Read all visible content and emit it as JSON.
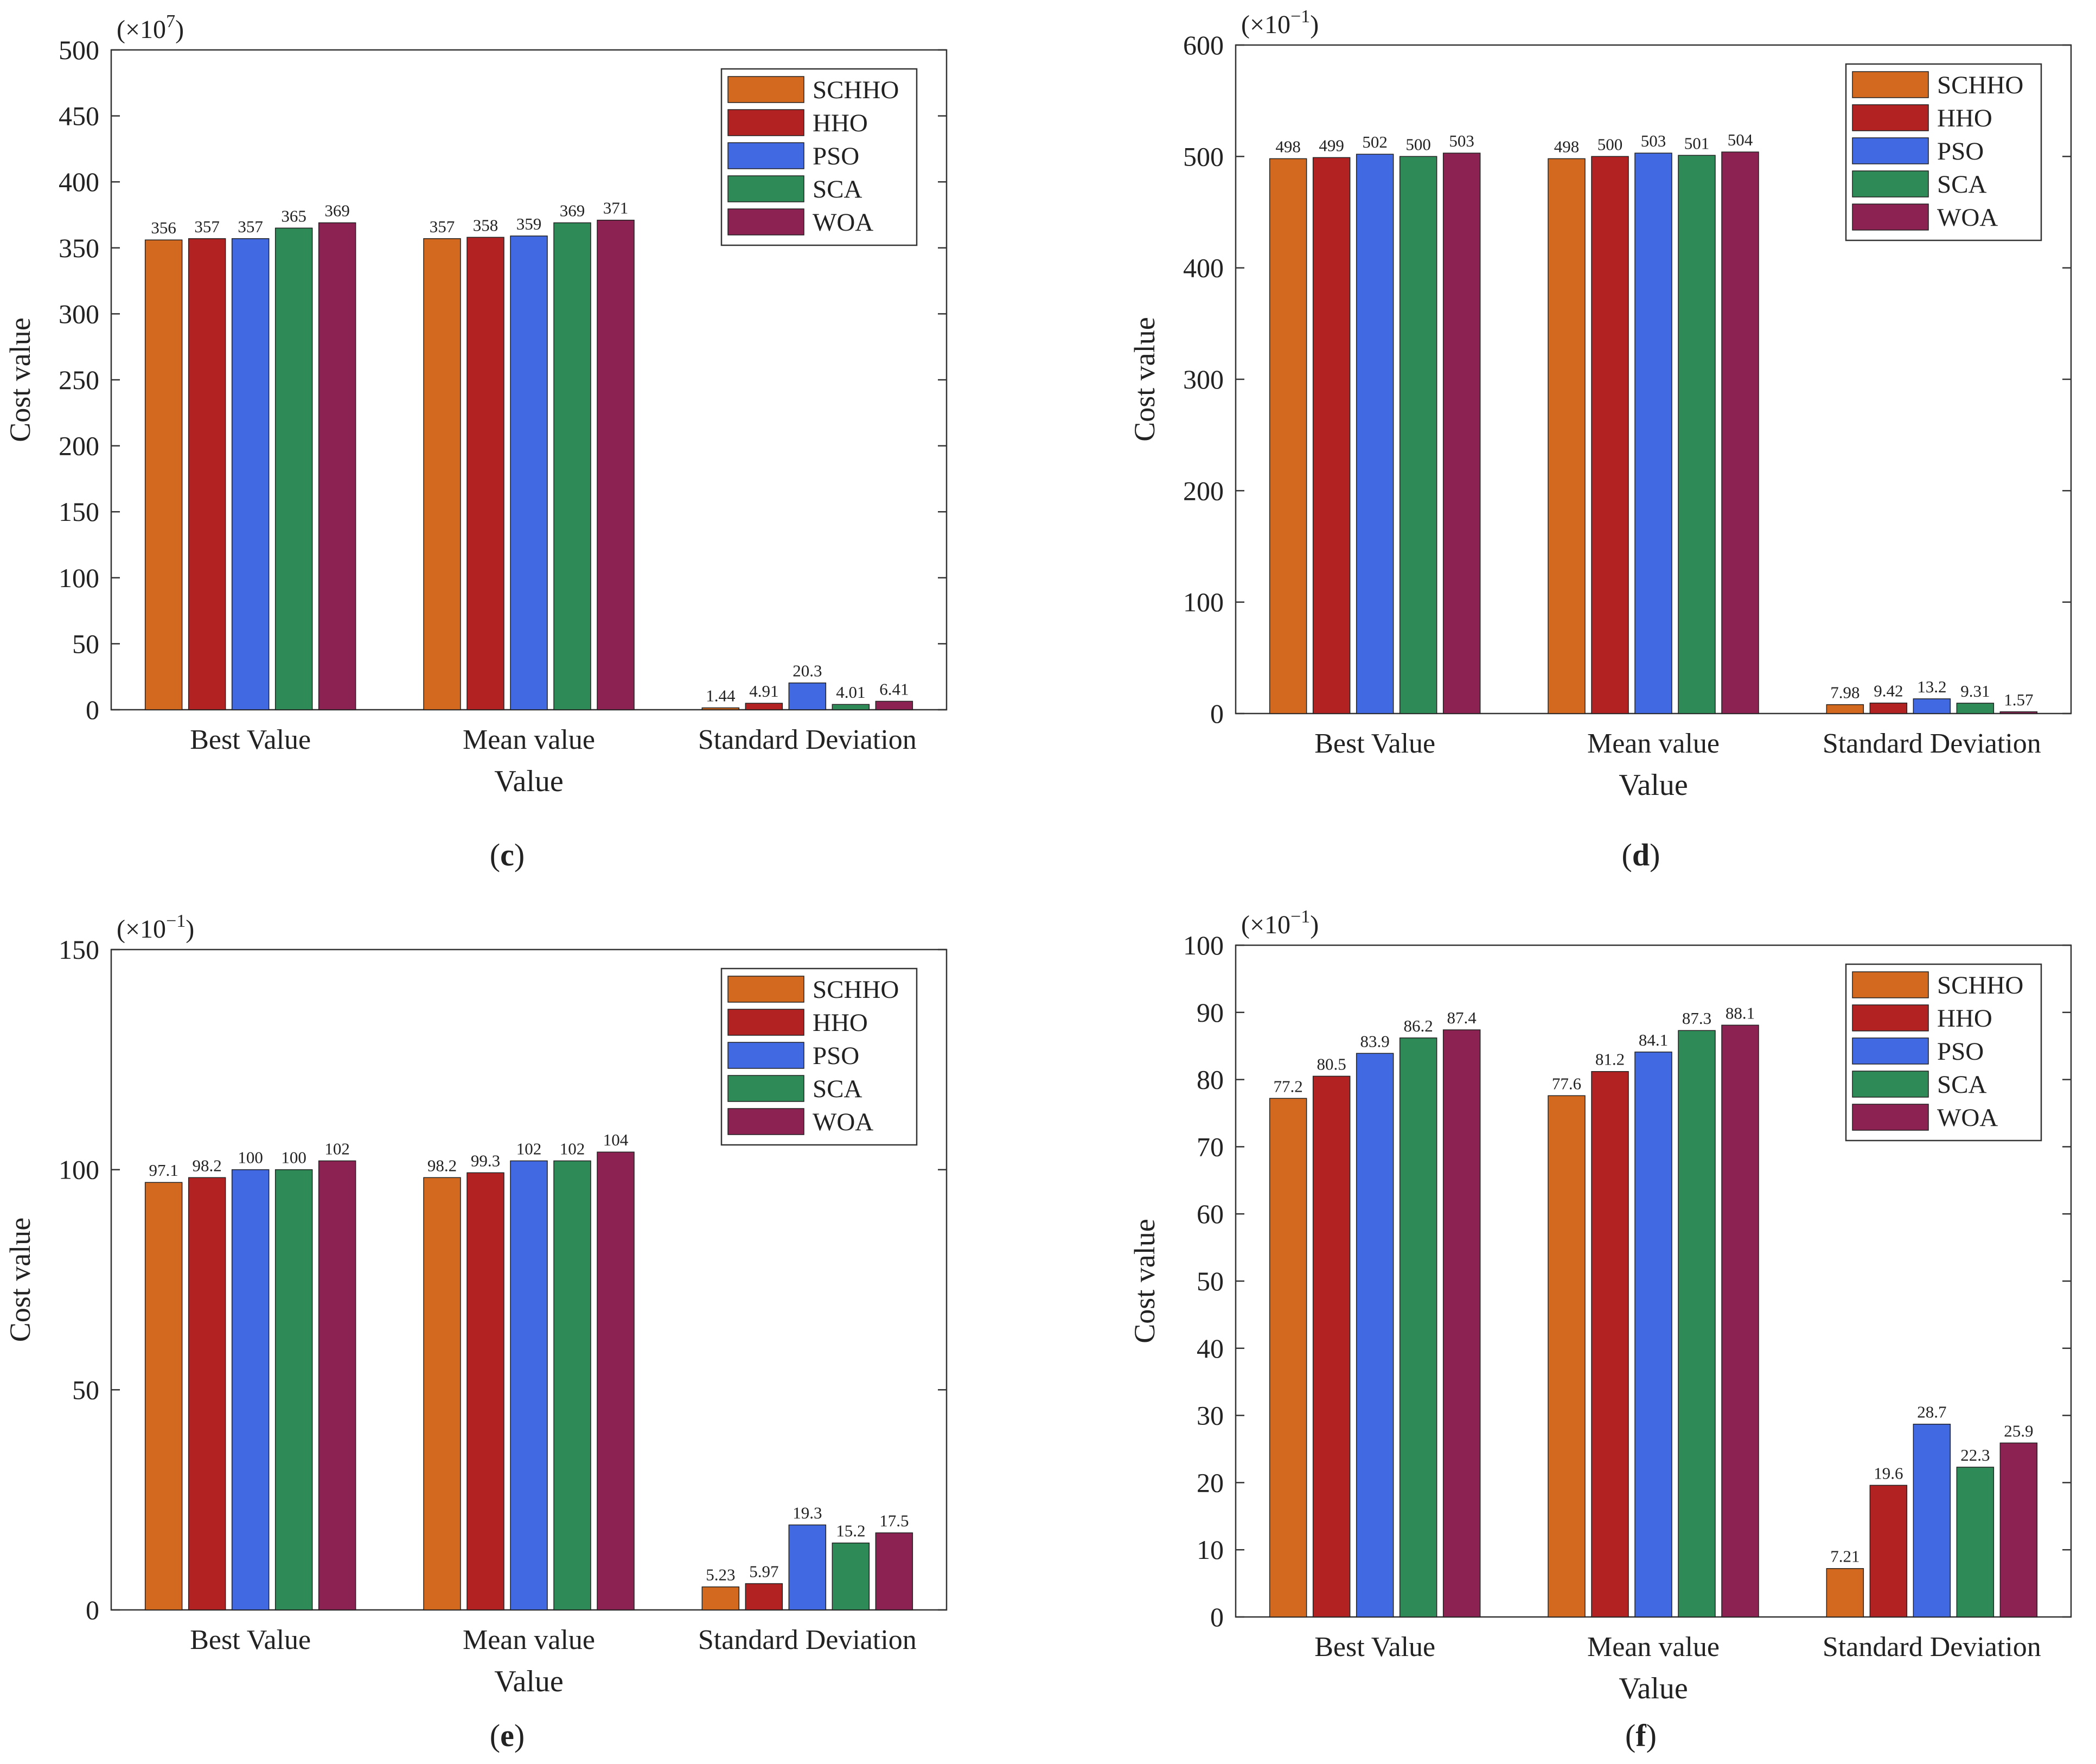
{
  "figure_panels": [
    "c",
    "d",
    "e",
    "f"
  ],
  "series_colors": {
    "SCHHO": "#D2691E",
    "HHO": "#B22222",
    "PSO": "#4169E1",
    "SCA": "#2E8B57",
    "WOA": "#8B2252"
  },
  "chart_data": [
    {
      "type": "bar",
      "panel_label": "c",
      "multiplier_prefix": "(×10",
      "multiplier_exp": "7",
      "multiplier_suffix": ")",
      "ylabel": "Cost value",
      "xlabel": "Value",
      "ylim": [
        0,
        500
      ],
      "yticks": [
        0,
        50,
        100,
        150,
        200,
        250,
        300,
        350,
        400,
        450,
        500
      ],
      "categories": [
        "Best Value",
        "Mean value",
        "Standard Deviation"
      ],
      "legend": "top-right",
      "series": [
        {
          "name": "SCHHO",
          "values": [
            356,
            357,
            1.44
          ],
          "labels": [
            "356",
            "357",
            "1.44"
          ]
        },
        {
          "name": "HHO",
          "values": [
            357,
            358,
            4.91
          ],
          "labels": [
            "357",
            "358",
            "4.91"
          ]
        },
        {
          "name": "PSO",
          "values": [
            357,
            359,
            20.3
          ],
          "labels": [
            "357",
            "359",
            "20.3"
          ]
        },
        {
          "name": "SCA",
          "values": [
            365,
            369,
            4.01
          ],
          "labels": [
            "365",
            "369",
            "4.01"
          ]
        },
        {
          "name": "WOA",
          "values": [
            369,
            371,
            6.41
          ],
          "labels": [
            "369",
            "371",
            "6.41"
          ]
        }
      ]
    },
    {
      "type": "bar",
      "panel_label": "d",
      "multiplier_prefix": "(×10",
      "multiplier_exp": "−1",
      "multiplier_suffix": ")",
      "ylabel": "Cost value",
      "xlabel": "Value",
      "ylim": [
        0,
        600
      ],
      "yticks": [
        0,
        100,
        200,
        300,
        400,
        500,
        600
      ],
      "categories": [
        "Best Value",
        "Mean value",
        "Standard Deviation"
      ],
      "legend": "top-right",
      "series": [
        {
          "name": "SCHHO",
          "values": [
            498,
            498,
            7.98
          ],
          "labels": [
            "498",
            "498",
            "7.98"
          ]
        },
        {
          "name": "HHO",
          "values": [
            499,
            500,
            9.42
          ],
          "labels": [
            "499",
            "500",
            "9.42"
          ]
        },
        {
          "name": "PSO",
          "values": [
            502,
            503,
            13.2
          ],
          "labels": [
            "502",
            "503",
            "13.2"
          ]
        },
        {
          "name": "SCA",
          "values": [
            500,
            501,
            9.31
          ],
          "labels": [
            "500",
            "501",
            "9.31"
          ]
        },
        {
          "name": "WOA",
          "values": [
            503,
            504,
            1.57
          ],
          "labels": [
            "503",
            "504",
            "1.57"
          ]
        }
      ]
    },
    {
      "type": "bar",
      "panel_label": "e",
      "multiplier_prefix": "(×10",
      "multiplier_exp": "−1",
      "multiplier_suffix": ")",
      "ylabel": "Cost value",
      "xlabel": "Value",
      "ylim": [
        0,
        150
      ],
      "yticks": [
        0,
        50,
        100,
        150
      ],
      "categories": [
        "Best Value",
        "Mean value",
        "Standard Deviation"
      ],
      "legend": "top-right",
      "series": [
        {
          "name": "SCHHO",
          "values": [
            97.1,
            98.2,
            5.23
          ],
          "labels": [
            "97.1",
            "98.2",
            "5.23"
          ]
        },
        {
          "name": "HHO",
          "values": [
            98.2,
            99.3,
            5.97
          ],
          "labels": [
            "98.2",
            "99.3",
            "5.97"
          ]
        },
        {
          "name": "PSO",
          "values": [
            100,
            102,
            19.3
          ],
          "labels": [
            "100",
            "102",
            "19.3"
          ]
        },
        {
          "name": "SCA",
          "values": [
            100,
            102,
            15.2
          ],
          "labels": [
            "100",
            "102",
            "15.2"
          ]
        },
        {
          "name": "WOA",
          "values": [
            102,
            104,
            17.5
          ],
          "labels": [
            "102",
            "104",
            "17.5"
          ]
        }
      ]
    },
    {
      "type": "bar",
      "panel_label": "f",
      "multiplier_prefix": "(×10",
      "multiplier_exp": "−1",
      "multiplier_suffix": ")",
      "ylabel": "Cost value",
      "xlabel": "Value",
      "ylim": [
        0,
        100
      ],
      "yticks": [
        0,
        10,
        20,
        30,
        40,
        50,
        60,
        70,
        80,
        90,
        100
      ],
      "categories": [
        "Best Value",
        "Mean value",
        "Standard Deviation"
      ],
      "legend": "top-right",
      "series": [
        {
          "name": "SCHHO",
          "values": [
            77.2,
            77.6,
            7.21
          ],
          "labels": [
            "77.2",
            "77.6",
            "7.21"
          ]
        },
        {
          "name": "HHO",
          "values": [
            80.5,
            81.2,
            19.6
          ],
          "labels": [
            "80.5",
            "81.2",
            "19.6"
          ]
        },
        {
          "name": "PSO",
          "values": [
            83.9,
            84.1,
            28.7
          ],
          "labels": [
            "83.9",
            "84.1",
            "28.7"
          ]
        },
        {
          "name": "SCA",
          "values": [
            86.2,
            87.3,
            22.3
          ],
          "labels": [
            "86.2",
            "87.3",
            "22.3"
          ]
        },
        {
          "name": "WOA",
          "values": [
            87.4,
            88.1,
            25.9
          ],
          "labels": [
            "87.4",
            "88.1",
            "25.9"
          ]
        }
      ]
    }
  ]
}
